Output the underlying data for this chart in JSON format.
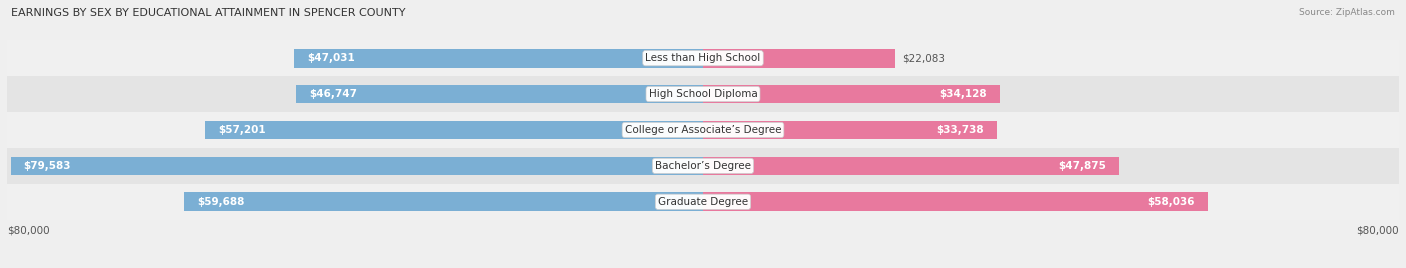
{
  "title": "EARNINGS BY SEX BY EDUCATIONAL ATTAINMENT IN SPENCER COUNTY",
  "source": "Source: ZipAtlas.com",
  "categories": [
    "Less than High School",
    "High School Diploma",
    "College or Associate’s Degree",
    "Bachelor’s Degree",
    "Graduate Degree"
  ],
  "male_values": [
    47031,
    46747,
    57201,
    79583,
    59688
  ],
  "female_values": [
    22083,
    34128,
    33738,
    47875,
    58036
  ],
  "male_color": "#7bafd4",
  "female_color": "#e8799e",
  "max_value": 80000,
  "axis_label_left": "$80,000",
  "axis_label_right": "$80,000",
  "label_fontsize": 7.5,
  "title_fontsize": 8.0,
  "source_fontsize": 6.5,
  "bar_height": 0.52,
  "row_colors": [
    "#f0f0f0",
    "#e4e4e4",
    "#f0f0f0",
    "#e4e4e4",
    "#f0f0f0"
  ]
}
